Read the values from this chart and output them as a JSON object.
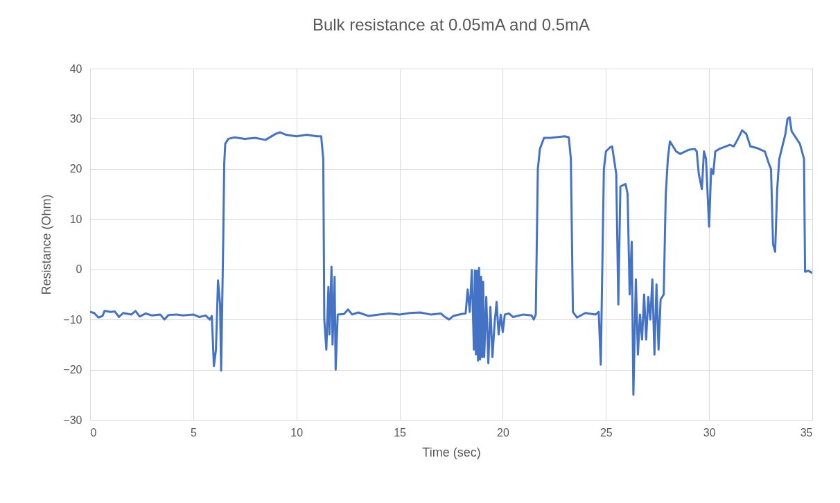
{
  "chart_data": {
    "type": "line",
    "title": "Bulk resistance at 0.05mA and 0.5mA",
    "xlabel": "Time (sec)",
    "ylabel": "Resistance (Ohm)",
    "x": [
      0,
      0.2,
      0.4,
      0.6,
      0.7,
      1.0,
      1.2,
      1.4,
      1.6,
      2.0,
      2.2,
      2.4,
      2.7,
      3.0,
      3.4,
      3.6,
      3.8,
      4.2,
      4.5,
      5.0,
      5.3,
      5.6,
      5.8,
      5.9,
      6.0,
      6.1,
      6.2,
      6.3,
      6.35,
      6.45,
      6.5,
      6.55,
      6.7,
      7.0,
      7.5,
      8.0,
      8.5,
      9.0,
      9.2,
      9.5,
      10.0,
      10.5,
      11.0,
      11.2,
      11.3,
      11.35,
      11.45,
      11.55,
      11.6,
      11.7,
      11.75,
      11.85,
      11.9,
      12.0,
      12.3,
      12.5,
      12.7,
      13.0,
      13.5,
      14.0,
      14.5,
      15.0,
      15.5,
      16.0,
      16.5,
      17.0,
      17.2,
      17.4,
      17.6,
      18.0,
      18.2,
      18.3,
      18.4,
      18.5,
      18.6,
      18.65,
      18.7,
      18.75,
      18.8,
      18.85,
      18.9,
      18.95,
      19.0,
      19.05,
      19.1,
      19.2,
      19.3,
      19.4,
      19.5,
      19.6,
      19.7,
      19.8,
      19.9,
      20.0,
      20.1,
      20.3,
      20.5,
      21.0,
      21.4,
      21.5,
      21.6,
      21.7,
      21.8,
      22.0,
      22.3,
      23.0,
      23.2,
      23.3,
      23.4,
      23.6,
      24.0,
      24.5,
      24.65,
      24.75,
      24.9,
      25.0,
      25.2,
      25.3,
      25.5,
      25.6,
      25.7,
      25.95,
      26.05,
      26.15,
      26.25,
      26.33,
      26.45,
      26.55,
      26.65,
      26.75,
      26.85,
      26.95,
      27.05,
      27.15,
      27.25,
      27.35,
      27.45,
      27.55,
      27.65,
      27.8,
      27.9,
      28.0,
      28.1,
      28.4,
      28.6,
      29.0,
      29.3,
      29.4,
      29.5,
      29.65,
      29.75,
      29.85,
      30.0,
      30.1,
      30.2,
      30.3,
      30.5,
      31.0,
      31.2,
      31.4,
      31.6,
      31.8,
      32.0,
      32.3,
      32.7,
      32.9,
      33.0,
      33.1,
      33.2,
      33.3,
      33.4,
      33.7,
      33.8,
      33.9,
      34.0,
      34.4,
      34.6,
      34.65,
      34.8,
      35.0
    ],
    "series": [
      {
        "color": "#4472c4",
        "values": [
          -8.5,
          -8.7,
          -9.6,
          -9.3,
          -8.3,
          -8.5,
          -8.4,
          -9.5,
          -8.7,
          -9.0,
          -8.3,
          -9.4,
          -8.8,
          -9.2,
          -9.0,
          -10.0,
          -9.1,
          -9.0,
          -9.2,
          -9.0,
          -9.5,
          -9.2,
          -10.0,
          -9.3,
          -19.3,
          -16,
          -2.2,
          -7,
          -20.2,
          5,
          21,
          25,
          26,
          26.3,
          26,
          26.2,
          25.8,
          27,
          27.3,
          26.8,
          26.5,
          26.8,
          26.5,
          26.5,
          22,
          -10,
          -16,
          -3.5,
          -13,
          0.5,
          -15,
          -1.5,
          -20,
          -9,
          -8.9,
          -8.0,
          -9.0,
          -8.6,
          -9.3,
          -9.0,
          -8.8,
          -9.0,
          -8.7,
          -8.6,
          -9.0,
          -8.8,
          -9.5,
          -10.0,
          -9.3,
          -8.9,
          -8.8,
          -4.0,
          -8.5,
          -0.1,
          -16,
          -0.2,
          -17,
          -0.3,
          -18.2,
          0.3,
          -18,
          -1.5,
          -17.5,
          -2.5,
          -17.5,
          -5.5,
          -18.7,
          -7.5,
          -17.5,
          -11,
          -6.5,
          -13,
          -9,
          -12.5,
          -9,
          -8.8,
          -9.5,
          -9.0,
          -9.2,
          -10,
          -9.0,
          20,
          24,
          26.2,
          26.2,
          26.5,
          26.3,
          22,
          -8.5,
          -9.6,
          -8.7,
          -9.0,
          -8.5,
          -19,
          20,
          23.5,
          24.3,
          24.5,
          19,
          -7,
          16.5,
          17,
          15,
          -5,
          5.5,
          -25,
          -2,
          -17,
          -9,
          -14,
          -5,
          -14,
          -5.5,
          -10,
          -2,
          -17,
          -3,
          -16,
          -6,
          -5,
          15,
          22,
          25.5,
          23.5,
          23,
          23.8,
          24,
          23.5,
          19,
          16,
          23.5,
          22,
          8.5,
          20,
          19,
          23.5,
          24,
          24.8,
          24.5,
          26,
          27.7,
          27,
          24.5,
          24.2,
          23.5,
          21,
          20,
          5,
          3.5,
          16,
          22,
          27,
          30,
          30.3,
          27.5,
          25,
          22,
          -0.5,
          -0.3,
          -0.7
        ]
      }
    ],
    "xlim": [
      0,
      35
    ],
    "xticks": [
      0,
      5,
      10,
      15,
      20,
      25,
      30,
      35
    ],
    "ylim": [
      -30,
      40
    ],
    "yticks": [
      -30,
      -20,
      -10,
      0,
      10,
      20,
      30,
      40
    ],
    "grid": true,
    "line_style": "solid",
    "marker": "none"
  }
}
